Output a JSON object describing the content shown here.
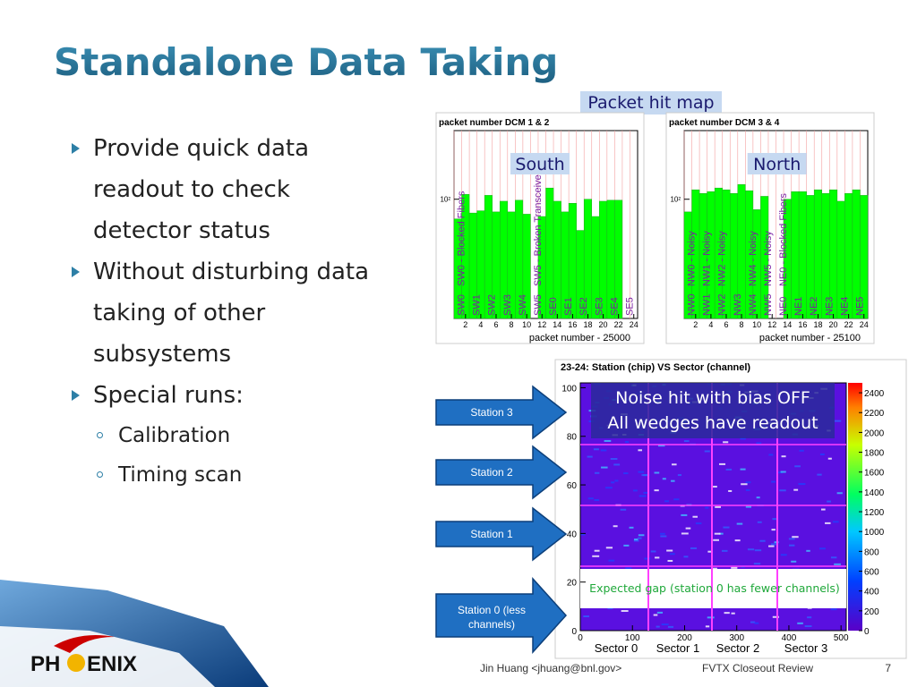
{
  "header": {
    "title": "Standalone Data Taking"
  },
  "bullets": [
    {
      "text": "Provide quick data readout to check detector status"
    },
    {
      "text": "Without disturbing data taking of other subsystems"
    },
    {
      "text": "Special runs:",
      "sub": [
        "Calibration",
        "Timing scan"
      ]
    }
  ],
  "hit_map": {
    "caption": "Packet hit map",
    "log": true,
    "ylim": [
      30,
      200
    ],
    "yticks": [
      {
        "value": 100,
        "label": "10²"
      }
    ],
    "xlim": [
      0,
      24
    ],
    "xticks": [
      2,
      4,
      6,
      8,
      10,
      12,
      14,
      16,
      18,
      20,
      22,
      24
    ],
    "color": "#00ff00",
    "panels": [
      {
        "title": "packet number DCM 1 & 2",
        "label": "South",
        "xlabel": "packet number - 25000",
        "bin_labels": [
          "SW0",
          "SW1",
          "SW2",
          "SW3",
          "SW4",
          "SW5",
          "SE0",
          "SE1",
          "SE2",
          "SE3",
          "SE4",
          "SE5"
        ],
        "annotations": [
          "SW0 - Blocked Fibers",
          "SW5 - Broken Transceiver"
        ],
        "values": [
          82,
          105,
          87,
          89,
          104,
          88,
          98,
          88,
          99,
          86,
          null,
          84,
          112,
          98,
          88,
          96,
          73,
          100,
          84,
          98,
          99,
          99,
          null,
          null
        ]
      },
      {
        "title": "packet number DCM 3 & 4",
        "label": "North",
        "xlabel": "packet number - 25100",
        "bin_labels": [
          "NW0",
          "NW1",
          "NW2",
          "NW3",
          "NW4",
          "NW5",
          "NE0",
          "NE1",
          "NE2",
          "NE3",
          "NE4",
          "NE5"
        ],
        "annotations": [
          "NW0 - Noisy",
          "NW1 - Noisy",
          "NW2 - Noisy",
          "NW4 - Noisy",
          "NW5 - Noisy",
          "NE0 - Blocked Fibers"
        ],
        "values": [
          88,
          110,
          106,
          108,
          112,
          110,
          106,
          116,
          109,
          90,
          103,
          null,
          null,
          100,
          108,
          108,
          104,
          110,
          106,
          110,
          98,
          106,
          110,
          104
        ]
      }
    ]
  },
  "station_map": {
    "title": "23-24: Station (chip) VS Sector (channel)",
    "xlim": [
      0,
      510
    ],
    "xticks": [
      0,
      100,
      200,
      300,
      400,
      500
    ],
    "ylim": [
      0,
      102
    ],
    "yticks": [
      0,
      20,
      40,
      60,
      80,
      100
    ],
    "colorbar_lim": [
      0,
      2500
    ],
    "colorbar_ticks": [
      0,
      200,
      400,
      600,
      800,
      1000,
      1200,
      1400,
      1600,
      1800,
      2000,
      2200,
      2400
    ],
    "notes": [
      "Noise hit with bias OFF",
      "All wedges have readout"
    ],
    "gap_note": "Expected gap (station 0  has fewer channels)",
    "sectors": [
      "Sector 0",
      "Sector 1",
      "Sector 2",
      "Sector 3"
    ]
  },
  "stations": [
    "Station 3",
    "Station 2",
    "Station 1",
    "Station 0 (less channels)"
  ],
  "footer": {
    "author": "Jin Huang <jhuang@bnl.gov>",
    "event": "FVTX Closeout Review",
    "page": "7",
    "logo_left": "PH",
    "logo_right": "ENIX"
  }
}
